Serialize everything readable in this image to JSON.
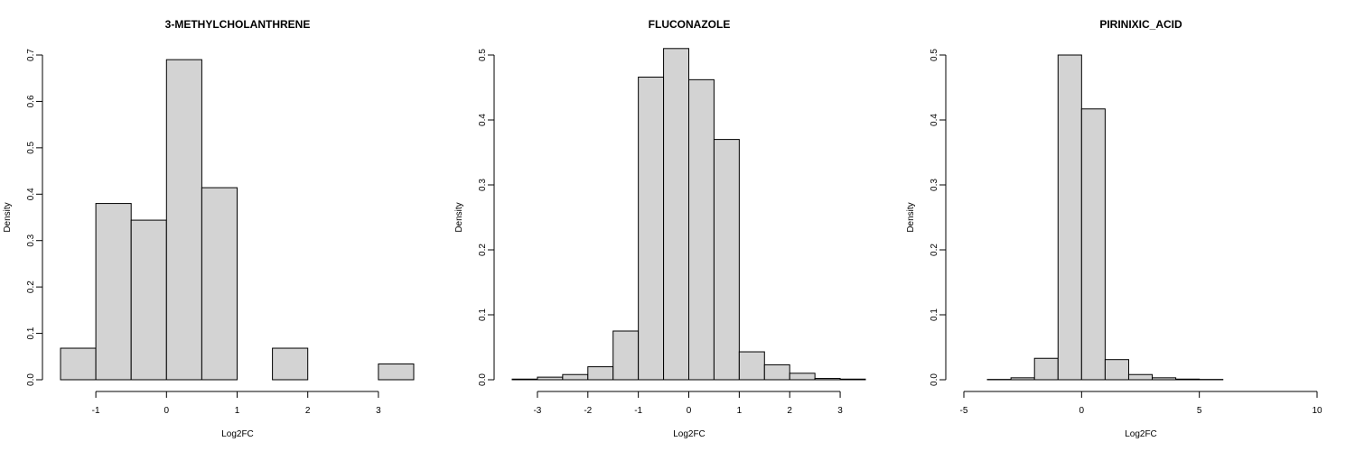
{
  "chart_data": [
    {
      "type": "bar",
      "title": "3-METHYLCHOLANTHRENE",
      "xlabel": "Log2FC",
      "ylabel": "Density",
      "bin_edges": [
        -1.5,
        -1.0,
        -0.5,
        0.0,
        0.5,
        1.0,
        1.5,
        2.0,
        2.5,
        3.0,
        3.5
      ],
      "values": [
        0.068,
        0.38,
        0.344,
        0.69,
        0.414,
        0.0,
        0.068,
        0.0,
        0.0,
        0.034
      ],
      "xlim": [
        -1.5,
        3.5
      ],
      "ylim": [
        0,
        0.7
      ],
      "xticks": [
        -1,
        0,
        1,
        2,
        3
      ],
      "xtick_labels": [
        "-1",
        "0",
        "1",
        "2",
        "3"
      ],
      "yticks": [
        0.0,
        0.1,
        0.2,
        0.3,
        0.4,
        0.5,
        0.6,
        0.7
      ],
      "ytick_labels": [
        "0.0",
        "0.1",
        "0.2",
        "0.3",
        "0.4",
        "0.5",
        "0.6",
        "0.7"
      ]
    },
    {
      "type": "bar",
      "title": "FLUCONAZOLE",
      "xlabel": "Log2FC",
      "ylabel": "Density",
      "bin_edges": [
        -3.5,
        -3.0,
        -2.5,
        -2.0,
        -1.5,
        -1.0,
        -0.5,
        0.0,
        0.5,
        1.0,
        1.5,
        2.0,
        2.5,
        3.0,
        3.5
      ],
      "values": [
        0.001,
        0.004,
        0.008,
        0.02,
        0.075,
        0.466,
        0.51,
        0.462,
        0.37,
        0.043,
        0.023,
        0.01,
        0.002,
        0.001
      ],
      "xlim": [
        -3.5,
        3.5
      ],
      "ylim": [
        0,
        0.5
      ],
      "xticks": [
        -3,
        -2,
        -1,
        0,
        1,
        2,
        3
      ],
      "xtick_labels": [
        "-3",
        "-2",
        "-1",
        "0",
        "1",
        "2",
        "3"
      ],
      "yticks": [
        0.0,
        0.1,
        0.2,
        0.3,
        0.4,
        0.5
      ],
      "ytick_labels": [
        "0.0",
        "0.1",
        "0.2",
        "0.3",
        "0.4",
        "0.5"
      ]
    },
    {
      "type": "bar",
      "title": "PIRINIXIC_ACID",
      "xlabel": "Log2FC",
      "ylabel": "Density",
      "bin_edges": [
        -5,
        -4,
        -3,
        -2,
        -1,
        0,
        1,
        2,
        3,
        4,
        5,
        6,
        7,
        8,
        9,
        10
      ],
      "values": [
        0.0,
        0.0005,
        0.003,
        0.033,
        0.5,
        0.417,
        0.031,
        0.008,
        0.003,
        0.001,
        0.0005,
        0.0,
        0.0,
        0.0,
        0.0
      ],
      "xlim": [
        -5,
        10
      ],
      "ylim": [
        0,
        0.5
      ],
      "xticks": [
        -5,
        0,
        5,
        10
      ],
      "xtick_labels": [
        "-5",
        "0",
        "5",
        "10"
      ],
      "yticks": [
        0.0,
        0.1,
        0.2,
        0.3,
        0.4,
        0.5
      ],
      "ytick_labels": [
        "0.0",
        "0.1",
        "0.2",
        "0.3",
        "0.4",
        "0.5"
      ]
    }
  ]
}
